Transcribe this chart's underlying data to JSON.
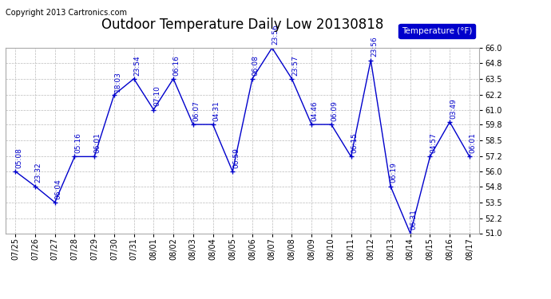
{
  "title": "Outdoor Temperature Daily Low 20130818",
  "copyright": "Copyright 2013 Cartronics.com",
  "legend_label": "Temperature (°F)",
  "x_labels": [
    "07/25",
    "07/26",
    "07/27",
    "07/28",
    "07/29",
    "07/30",
    "07/31",
    "08/01",
    "08/02",
    "08/03",
    "08/04",
    "08/05",
    "08/06",
    "08/07",
    "08/08",
    "08/09",
    "08/10",
    "08/11",
    "08/12",
    "08/13",
    "08/14",
    "08/15",
    "08/16",
    "08/17"
  ],
  "y_values": [
    56.0,
    54.8,
    53.5,
    57.2,
    57.2,
    62.2,
    63.5,
    61.0,
    63.5,
    59.8,
    59.8,
    56.0,
    63.5,
    66.0,
    63.5,
    59.8,
    59.8,
    57.2,
    65.0,
    54.8,
    51.0,
    57.2,
    60.0,
    57.2
  ],
  "point_labels": [
    "05:08",
    "23:32",
    "06:04",
    "05:16",
    "06:01",
    "18:03",
    "23:54",
    "07:10",
    "06:16",
    "06:07",
    "04:31",
    "06:59",
    "06:08",
    "23:56",
    "23:57",
    "04:46",
    "06:09",
    "06:15",
    "23:56",
    "06:19",
    "06:31",
    "04:57",
    "03:49",
    "06:01"
  ],
  "line_color": "#0000cc",
  "marker": "+",
  "ylim": [
    51.0,
    66.0
  ],
  "yticks": [
    51.0,
    52.2,
    53.5,
    54.8,
    56.0,
    57.2,
    58.5,
    59.8,
    61.0,
    62.2,
    63.5,
    64.8,
    66.0
  ],
  "bg_color": "#ffffff",
  "grid_color": "#bbbbbb",
  "legend_bg": "#0000cc",
  "legend_fg": "#ffffff",
  "title_fontsize": 12,
  "label_fontsize": 7,
  "point_label_fontsize": 6.5,
  "copyright_fontsize": 7
}
